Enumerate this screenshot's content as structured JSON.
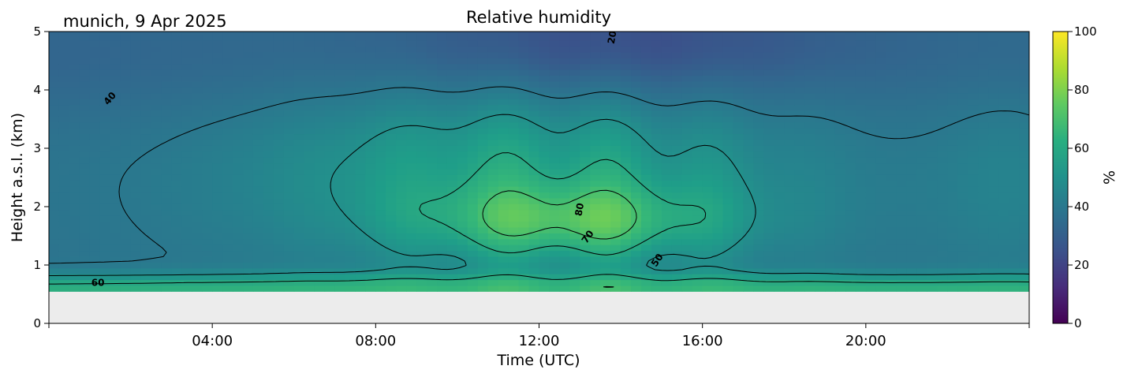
{
  "chart_data": {
    "type": "heatmap",
    "title": "Relative humidity",
    "subtitle": "munich, 9 Apr 2025",
    "xlabel": "Time (UTC)",
    "ylabel": "Height a.s.l. (km)",
    "xlim": [
      "00:00",
      "24:00"
    ],
    "ylim": [
      0,
      5
    ],
    "x_ticks": [
      "04:00",
      "08:00",
      "12:00",
      "16:00",
      "20:00"
    ],
    "x_tick_hours": [
      4,
      8,
      12,
      16,
      20
    ],
    "y_ticks": [
      0,
      1,
      2,
      3,
      4,
      5
    ],
    "colorbar": {
      "label": "%",
      "ticks": [
        0,
        20,
        40,
        60,
        80,
        100
      ],
      "range": [
        0,
        100
      ],
      "colormap": "viridis"
    },
    "data_range_km": [
      0.55,
      5
    ],
    "no_data_color": "#ececec",
    "contour_levels": [
      20,
      40,
      50,
      60,
      70,
      80
    ],
    "contour_labels": [
      {
        "text": "60",
        "hour": 1.2,
        "km": 0.69,
        "angle": 0
      },
      {
        "text": "40",
        "hour": 1.5,
        "km": 3.85,
        "angle": -50
      },
      {
        "text": "80",
        "hour": 13.0,
        "km": 1.95,
        "angle": -80
      },
      {
        "text": "70",
        "hour": 13.2,
        "km": 1.48,
        "angle": -55
      },
      {
        "text": "50",
        "hour": 14.9,
        "km": 1.08,
        "angle": -55
      },
      {
        "text": "20",
        "hour": 13.8,
        "km": 4.9,
        "angle": -80
      }
    ],
    "grid": false,
    "legend": "none"
  }
}
